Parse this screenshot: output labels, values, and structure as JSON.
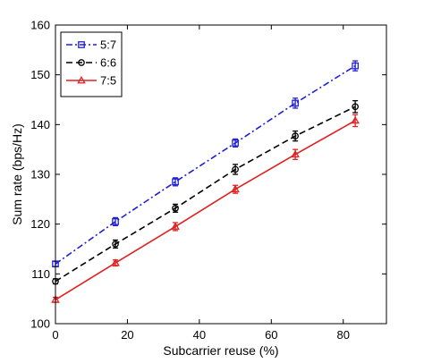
{
  "chart_data": {
    "type": "line",
    "xlabel": "Subcarrier reuse (%)",
    "ylabel": "Sum rate (bps/Hz)",
    "xlim": [
      0,
      92
    ],
    "ylim": [
      100,
      160
    ],
    "xticks": [
      0,
      20,
      40,
      60,
      80
    ],
    "yticks": [
      100,
      110,
      120,
      130,
      140,
      150,
      160
    ],
    "grid": false,
    "legend_position": "top-left",
    "x": [
      0,
      16.67,
      33.33,
      50,
      66.67,
      83.33
    ],
    "series": [
      {
        "name": "5:7",
        "color": "#1f1fd6",
        "line_style": "dash-dot",
        "marker": "square",
        "values": [
          112.0,
          120.5,
          128.5,
          136.3,
          144.3,
          151.8
        ],
        "errors": [
          0.5,
          0.8,
          0.8,
          0.8,
          1.0,
          1.0
        ]
      },
      {
        "name": "6:6",
        "color": "#000000",
        "line_style": "dashed",
        "marker": "circle",
        "values": [
          108.5,
          116.0,
          123.2,
          131.0,
          137.7,
          143.6
        ],
        "errors": [
          0.5,
          0.8,
          0.8,
          1.0,
          1.0,
          1.2
        ]
      },
      {
        "name": "7:5",
        "color": "#e02020",
        "line_style": "solid",
        "marker": "triangle",
        "values": [
          104.8,
          112.2,
          119.5,
          127.0,
          134.0,
          140.8
        ],
        "errors": [
          0.5,
          0.6,
          0.8,
          0.8,
          1.0,
          1.2
        ]
      }
    ]
  }
}
